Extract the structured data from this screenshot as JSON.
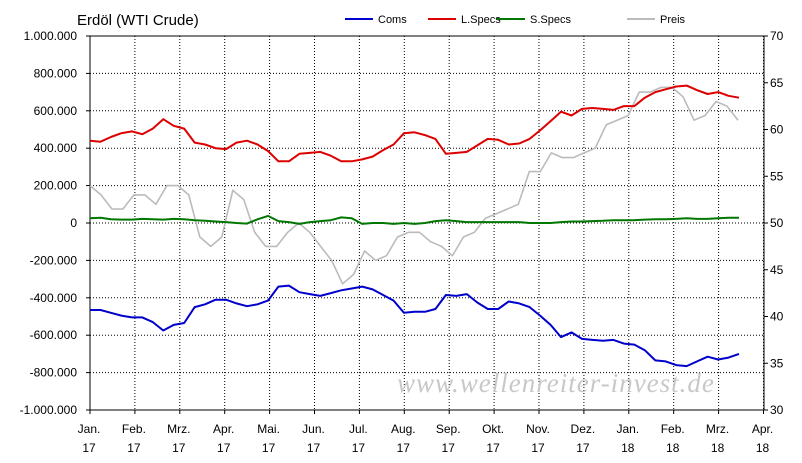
{
  "chart_data": {
    "type": "line",
    "title": "Erdöl (WTI Crude)",
    "watermark": "www.wellenreiter-invest.de",
    "y_left": {
      "min": -1000000,
      "max": 1000000,
      "ticks": [
        {
          "v": 1000000,
          "label": "1.000.000"
        },
        {
          "v": 800000,
          "label": "800.000"
        },
        {
          "v": 600000,
          "label": "600.000"
        },
        {
          "v": 400000,
          "label": "400.000"
        },
        {
          "v": 200000,
          "label": "200.000"
        },
        {
          "v": 0,
          "label": "0"
        },
        {
          "v": -200000,
          "label": "-200.000"
        },
        {
          "v": -400000,
          "label": "-400.000"
        },
        {
          "v": -600000,
          "label": "-600.000"
        },
        {
          "v": -800000,
          "label": "-800.000"
        },
        {
          "v": -1000000,
          "label": "-1.000.000"
        }
      ]
    },
    "y_right": {
      "min": 30,
      "max": 70,
      "ticks": [
        {
          "v": 70,
          "label": "70"
        },
        {
          "v": 65,
          "label": "65"
        },
        {
          "v": 60,
          "label": "60"
        },
        {
          "v": 55,
          "label": "55"
        },
        {
          "v": 50,
          "label": "50"
        },
        {
          "v": 45,
          "label": "45"
        },
        {
          "v": 40,
          "label": "40"
        },
        {
          "v": 35,
          "label": "35"
        },
        {
          "v": 30,
          "label": "30"
        }
      ]
    },
    "x_ticks": [
      {
        "m": "Jan.",
        "y": "17"
      },
      {
        "m": "Feb.",
        "y": "17"
      },
      {
        "m": "Mrz.",
        "y": "17"
      },
      {
        "m": "Apr.",
        "y": "17"
      },
      {
        "m": "Mai.",
        "y": "17"
      },
      {
        "m": "Jun.",
        "y": "17"
      },
      {
        "m": "Jul.",
        "y": "17"
      },
      {
        "m": "Aug.",
        "y": "17"
      },
      {
        "m": "Sep.",
        "y": "17"
      },
      {
        "m": "Okt.",
        "y": "17"
      },
      {
        "m": "Nov.",
        "y": "17"
      },
      {
        "m": "Dez.",
        "y": "17"
      },
      {
        "m": "Jan.",
        "y": "18"
      },
      {
        "m": "Feb.",
        "y": "18"
      },
      {
        "m": "Mrz.",
        "y": "18"
      },
      {
        "m": "Apr.",
        "y": "18"
      }
    ],
    "grid": true,
    "legend_position": "top",
    "series": [
      {
        "name": "Coms",
        "color": "#0000cc",
        "axis": "left",
        "values": [
          -465000,
          -465000,
          -480000,
          -495000,
          -505000,
          -505000,
          -530000,
          -575000,
          -545000,
          -535000,
          -450000,
          -435000,
          -410000,
          -410000,
          -430000,
          -445000,
          -435000,
          -415000,
          -340000,
          -335000,
          -370000,
          -380000,
          -390000,
          -375000,
          -360000,
          -350000,
          -340000,
          -355000,
          -385000,
          -415000,
          -480000,
          -475000,
          -475000,
          -460000,
          -385000,
          -390000,
          -380000,
          -425000,
          -460000,
          -460000,
          -420000,
          -430000,
          -450000,
          -495000,
          -545000,
          -610000,
          -585000,
          -620000,
          -625000,
          -630000,
          -625000,
          -645000,
          -650000,
          -680000,
          -735000,
          -740000,
          -760000,
          -765000,
          -740000,
          -715000,
          -730000,
          -720000,
          -700000
        ]
      },
      {
        "name": "L.Specs",
        "color": "#dd0000",
        "axis": "left",
        "values": [
          440000,
          435000,
          460000,
          480000,
          490000,
          475000,
          505000,
          555000,
          520000,
          505000,
          430000,
          420000,
          400000,
          395000,
          430000,
          440000,
          420000,
          385000,
          330000,
          330000,
          370000,
          375000,
          380000,
          360000,
          330000,
          330000,
          340000,
          355000,
          390000,
          420000,
          480000,
          485000,
          470000,
          450000,
          370000,
          375000,
          380000,
          415000,
          450000,
          445000,
          420000,
          425000,
          450000,
          495000,
          545000,
          595000,
          575000,
          610000,
          615000,
          610000,
          605000,
          625000,
          625000,
          670000,
          700000,
          715000,
          730000,
          735000,
          710000,
          690000,
          700000,
          680000,
          670000
        ]
      },
      {
        "name": "S.Specs",
        "color": "#007700",
        "axis": "left",
        "values": [
          25000,
          28000,
          20000,
          18000,
          18000,
          22000,
          20000,
          18000,
          22000,
          20000,
          15000,
          12000,
          8000,
          5000,
          0,
          -3000,
          20000,
          38000,
          10000,
          5000,
          -5000,
          5000,
          10000,
          15000,
          30000,
          25000,
          -5000,
          0,
          0,
          -5000,
          0,
          -5000,
          0,
          10000,
          15000,
          10000,
          5000,
          5000,
          5000,
          5000,
          5000,
          5000,
          0,
          0,
          0,
          5000,
          8000,
          8000,
          10000,
          12000,
          15000,
          15000,
          15000,
          18000,
          20000,
          20000,
          22000,
          25000,
          22000,
          22000,
          25000,
          28000,
          28000
        ]
      },
      {
        "name": "Preis",
        "color": "#bbbbbb",
        "axis": "right",
        "values": [
          54,
          53,
          51.5,
          51.5,
          53,
          53,
          52,
          54,
          54,
          53,
          48.5,
          47.5,
          48.5,
          53.5,
          52.5,
          49,
          47.5,
          47.5,
          49,
          50,
          49,
          47.5,
          46,
          43.5,
          44.5,
          47,
          46,
          46.5,
          48.5,
          49,
          49,
          48,
          47.5,
          46.5,
          48.5,
          49,
          50.5,
          51,
          51.5,
          52,
          55.5,
          55.5,
          57.5,
          57,
          57,
          57.5,
          58,
          60.5,
          61,
          61.5,
          64,
          64,
          64.5,
          64.5,
          63.5,
          61,
          61.5,
          63,
          62.5,
          61
        ]
      }
    ]
  }
}
